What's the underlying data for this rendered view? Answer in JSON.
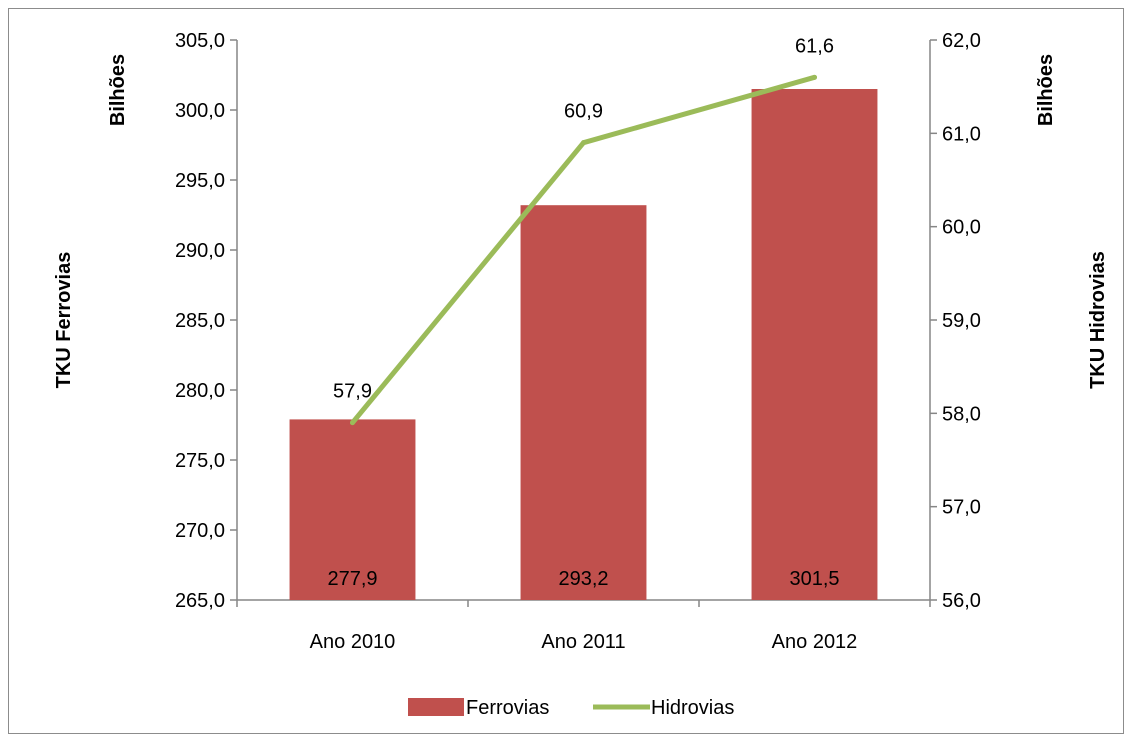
{
  "chart_data": {
    "type": "bar",
    "categories": [
      "Ano 2010",
      "Ano 2011",
      "Ano 2012"
    ],
    "series": [
      {
        "name": "Ferrovias",
        "type": "bar",
        "axis": "left",
        "color": "#C0504D",
        "values": [
          277.9,
          293.2,
          301.5
        ],
        "labels": [
          "277,9",
          "293,2",
          "301,5"
        ]
      },
      {
        "name": "Hidrovias",
        "type": "line",
        "axis": "right",
        "color": "#9BBB59",
        "values": [
          57.9,
          60.9,
          61.6
        ],
        "labels": [
          "57,9",
          "60,9",
          "61,6"
        ]
      }
    ],
    "y_left": {
      "title": "TKU Ferrovias",
      "unit": "Bilhões",
      "ylim": [
        265.0,
        305.0
      ],
      "ticks": [
        265.0,
        270.0,
        275.0,
        280.0,
        285.0,
        290.0,
        295.0,
        300.0,
        305.0
      ],
      "tick_labels": [
        "265,0",
        "270,0",
        "275,0",
        "280,0",
        "285,0",
        "290,0",
        "295,0",
        "300,0",
        "305,0"
      ]
    },
    "y_right": {
      "title": "TKU Hidrovias",
      "unit": "Bilhões",
      "ylim": [
        56.0,
        62.0
      ],
      "ticks": [
        56.0,
        57.0,
        58.0,
        59.0,
        60.0,
        61.0,
        62.0
      ],
      "tick_labels": [
        "56,0",
        "57,0",
        "58,0",
        "59,0",
        "60,0",
        "61,0",
        "62,0"
      ]
    },
    "legend": "bottom",
    "grid": false
  }
}
